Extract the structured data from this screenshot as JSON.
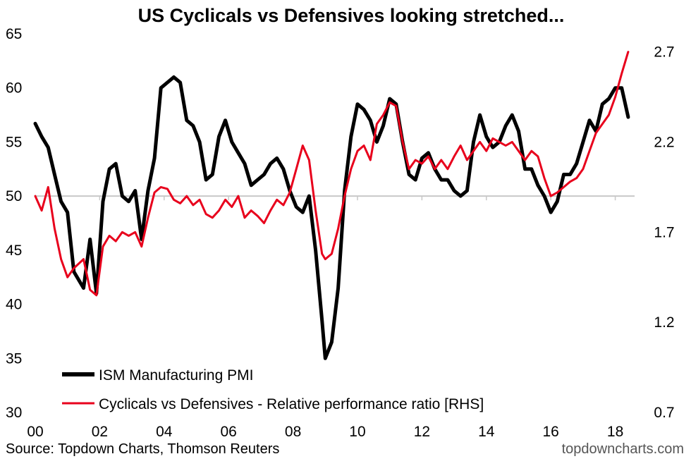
{
  "chart_data": {
    "type": "line",
    "title": "US Cyclicals vs Defensives looking stretched...",
    "x_tick_labels": [
      "00",
      "02",
      "04",
      "06",
      "08",
      "10",
      "12",
      "14",
      "16",
      "18"
    ],
    "x_tick_years": [
      2000,
      2002,
      2004,
      2006,
      2008,
      2010,
      2012,
      2014,
      2016,
      2018
    ],
    "xlim": [
      2000,
      2018.6
    ],
    "y_left": {
      "ylim": [
        30,
        65
      ],
      "ticks": [
        30,
        35,
        40,
        45,
        50,
        55,
        60,
        65
      ],
      "tick_labels": [
        "30",
        "35",
        "40",
        "45",
        "50",
        "55",
        "60",
        "65"
      ]
    },
    "y_right": {
      "ylim": [
        0.7,
        2.8
      ],
      "ticks": [
        0.7,
        1.2,
        1.7,
        2.2,
        2.7
      ],
      "tick_labels": [
        "0.7",
        "1.2",
        "1.7",
        "2.2",
        "2.7"
      ]
    },
    "reference_line": {
      "axis": "left",
      "value": 50
    },
    "grid": false,
    "legend_position": "bottom-left",
    "series": [
      {
        "name": "ISM Manufacturing PMI",
        "axis": "left",
        "color": "#000000",
        "x": [
          2000.0,
          2000.2,
          2000.4,
          2000.6,
          2000.8,
          2001.0,
          2001.2,
          2001.5,
          2001.7,
          2001.9,
          2002.1,
          2002.3,
          2002.5,
          2002.7,
          2002.9,
          2003.1,
          2003.3,
          2003.5,
          2003.7,
          2003.9,
          2004.1,
          2004.3,
          2004.5,
          2004.7,
          2004.9,
          2005.1,
          2005.3,
          2005.5,
          2005.7,
          2005.9,
          2006.1,
          2006.3,
          2006.5,
          2006.7,
          2006.9,
          2007.1,
          2007.3,
          2007.5,
          2007.7,
          2007.9,
          2008.1,
          2008.3,
          2008.5,
          2008.7,
          2008.9,
          2009.0,
          2009.2,
          2009.4,
          2009.6,
          2009.8,
          2010.0,
          2010.2,
          2010.4,
          2010.6,
          2010.8,
          2011.0,
          2011.2,
          2011.4,
          2011.6,
          2011.8,
          2012.0,
          2012.2,
          2012.4,
          2012.6,
          2012.8,
          2013.0,
          2013.2,
          2013.4,
          2013.6,
          2013.8,
          2014.0,
          2014.2,
          2014.4,
          2014.6,
          2014.8,
          2015.0,
          2015.2,
          2015.4,
          2015.6,
          2015.8,
          2016.0,
          2016.2,
          2016.4,
          2016.6,
          2016.8,
          2017.0,
          2017.2,
          2017.4,
          2017.6,
          2017.8,
          2018.0,
          2018.2,
          2018.4
        ],
        "values": [
          56.7,
          55.5,
          54.5,
          52.0,
          49.5,
          48.5,
          43.0,
          41.5,
          46.0,
          41.0,
          49.5,
          52.5,
          53.0,
          50.0,
          49.5,
          50.5,
          46.0,
          50.5,
          53.5,
          60.0,
          60.5,
          61.0,
          60.5,
          57.0,
          56.5,
          55.0,
          51.5,
          52.0,
          55.5,
          57.0,
          55.0,
          54.0,
          53.0,
          51.0,
          51.5,
          52.0,
          53.0,
          53.5,
          52.5,
          50.5,
          49.0,
          48.5,
          50.0,
          45.0,
          38.5,
          35.0,
          36.5,
          41.5,
          50.5,
          55.5,
          58.5,
          58.0,
          57.0,
          55.0,
          56.5,
          59.0,
          58.5,
          55.0,
          52.0,
          51.5,
          53.5,
          54.0,
          52.5,
          51.5,
          51.5,
          50.5,
          50.0,
          50.5,
          55.0,
          57.5,
          55.5,
          54.5,
          55.0,
          56.5,
          57.5,
          56.0,
          52.5,
          52.5,
          51.0,
          50.0,
          48.5,
          49.5,
          52.0,
          52.0,
          53.0,
          55.0,
          57.0,
          56.0,
          58.5,
          59.0,
          60.0,
          60.0,
          57.3
        ]
      },
      {
        "name": "Cyclicals vs Defensives - Relative performance ratio [RHS]",
        "axis": "right",
        "color": "#e8001c",
        "x": [
          2000.0,
          2000.2,
          2000.4,
          2000.6,
          2000.8,
          2001.0,
          2001.2,
          2001.5,
          2001.7,
          2001.9,
          2002.1,
          2002.3,
          2002.5,
          2002.7,
          2002.9,
          2003.1,
          2003.3,
          2003.5,
          2003.7,
          2003.9,
          2004.1,
          2004.3,
          2004.5,
          2004.7,
          2004.9,
          2005.1,
          2005.3,
          2005.5,
          2005.7,
          2005.9,
          2006.1,
          2006.3,
          2006.5,
          2006.7,
          2006.9,
          2007.1,
          2007.3,
          2007.5,
          2007.7,
          2007.9,
          2008.1,
          2008.3,
          2008.5,
          2008.7,
          2008.9,
          2009.0,
          2009.2,
          2009.4,
          2009.6,
          2009.8,
          2010.0,
          2010.2,
          2010.4,
          2010.6,
          2010.8,
          2011.0,
          2011.2,
          2011.4,
          2011.6,
          2011.8,
          2012.0,
          2012.2,
          2012.4,
          2012.6,
          2012.8,
          2013.0,
          2013.2,
          2013.4,
          2013.6,
          2013.8,
          2014.0,
          2014.2,
          2014.4,
          2014.6,
          2014.8,
          2015.0,
          2015.2,
          2015.4,
          2015.6,
          2015.8,
          2016.0,
          2016.2,
          2016.4,
          2016.6,
          2016.8,
          2017.0,
          2017.2,
          2017.4,
          2017.6,
          2017.8,
          2018.0,
          2018.2,
          2018.4
        ],
        "values": [
          1.9,
          1.82,
          1.95,
          1.72,
          1.55,
          1.45,
          1.5,
          1.55,
          1.38,
          1.35,
          1.62,
          1.68,
          1.65,
          1.7,
          1.68,
          1.7,
          1.62,
          1.78,
          1.92,
          1.95,
          1.94,
          1.88,
          1.86,
          1.9,
          1.85,
          1.88,
          1.8,
          1.78,
          1.82,
          1.88,
          1.84,
          1.9,
          1.78,
          1.82,
          1.79,
          1.75,
          1.82,
          1.88,
          1.85,
          1.92,
          2.05,
          2.18,
          2.1,
          1.82,
          1.58,
          1.55,
          1.58,
          1.72,
          1.9,
          2.05,
          2.15,
          2.18,
          2.1,
          2.3,
          2.35,
          2.42,
          2.4,
          2.2,
          2.05,
          2.1,
          2.08,
          2.12,
          2.05,
          2.1,
          2.05,
          2.12,
          2.18,
          2.1,
          2.15,
          2.2,
          2.15,
          2.22,
          2.2,
          2.18,
          2.2,
          2.15,
          2.1,
          2.15,
          2.12,
          2.0,
          1.9,
          1.92,
          1.95,
          1.98,
          2.0,
          2.05,
          2.15,
          2.25,
          2.3,
          2.35,
          2.45,
          2.58,
          2.7
        ]
      }
    ]
  },
  "footer": {
    "source": "Source: Topdown Charts, Thomson Reuters",
    "brand": "topdowncharts.com"
  }
}
